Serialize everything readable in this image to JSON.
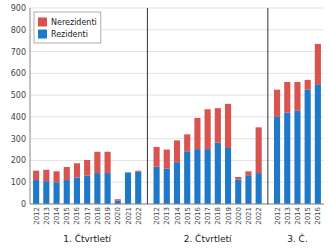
{
  "chart_data": {
    "type": "bar",
    "stacked": true,
    "categories": [
      "2012",
      "2013",
      "2014",
      "2015",
      "2016",
      "2017",
      "2018",
      "2019",
      "2020",
      "2021",
      "2022",
      "2012",
      "2013",
      "2014",
      "2015",
      "2016",
      "2017",
      "2018",
      "2019",
      "2020",
      "2021",
      "2022",
      "2012",
      "2013",
      "2014",
      "2015",
      "2016"
    ],
    "series": [
      {
        "name": "Rezidenti",
        "color": "#1F78C8",
        "values": [
          110,
          105,
          100,
          110,
          122,
          130,
          142,
          142,
          15,
          145,
          148,
          172,
          162,
          192,
          242,
          252,
          252,
          282,
          257,
          112,
          132,
          142,
          400,
          420,
          430,
          525,
          550
        ]
      },
      {
        "name": "Nerezidenti",
        "color": "#D9534F",
        "values": [
          43,
          52,
          50,
          60,
          65,
          72,
          98,
          98,
          7,
          0,
          5,
          90,
          88,
          100,
          78,
          143,
          183,
          158,
          203,
          12,
          18,
          210,
          125,
          140,
          130,
          45,
          185
        ]
      }
    ],
    "annotations": [
      "1. Čtvrtletí",
      "2. Čtvrtletí",
      "3. Č."
    ],
    "ylim": [
      0,
      900
    ],
    "yticks": [
      0,
      100,
      200,
      300,
      400,
      500,
      600,
      700,
      800,
      900
    ],
    "grid": true,
    "legend": "upper left"
  }
}
